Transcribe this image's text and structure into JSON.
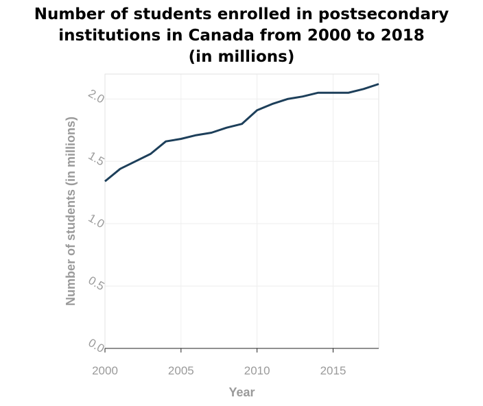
{
  "chart_data": {
    "type": "line",
    "title_lines": [
      "Number of students enrolled in postsecondary",
      "institutions in Canada from 2000 to 2018",
      "(in millions)"
    ],
    "xlabel": "Year",
    "ylabel": "Number of students (in millions)",
    "x_ticks": [
      2000,
      2005,
      2010,
      2015
    ],
    "x_tick_labels": [
      "2000",
      "2005",
      "2010",
      "2015"
    ],
    "y_ticks": [
      0.0,
      0.5,
      1.0,
      1.5,
      2.0
    ],
    "y_tick_labels": [
      "0.0",
      "0.5",
      "1.0",
      "1.5",
      "2.0"
    ],
    "xlim": [
      2000,
      2018
    ],
    "ylim": [
      0.0,
      2.2
    ],
    "grid": true,
    "line_color": "#1d3f5a",
    "axis_text_color": "#9a9a9a",
    "grid_color": "#eeeeee",
    "x": [
      2000,
      2001,
      2002,
      2003,
      2004,
      2005,
      2006,
      2007,
      2008,
      2009,
      2010,
      2011,
      2012,
      2013,
      2014,
      2015,
      2016,
      2017,
      2018
    ],
    "values": [
      1.34,
      1.44,
      1.5,
      1.56,
      1.66,
      1.68,
      1.71,
      1.73,
      1.77,
      1.8,
      1.91,
      1.96,
      2.0,
      2.02,
      2.05,
      2.05,
      2.05,
      2.08,
      2.12
    ]
  }
}
